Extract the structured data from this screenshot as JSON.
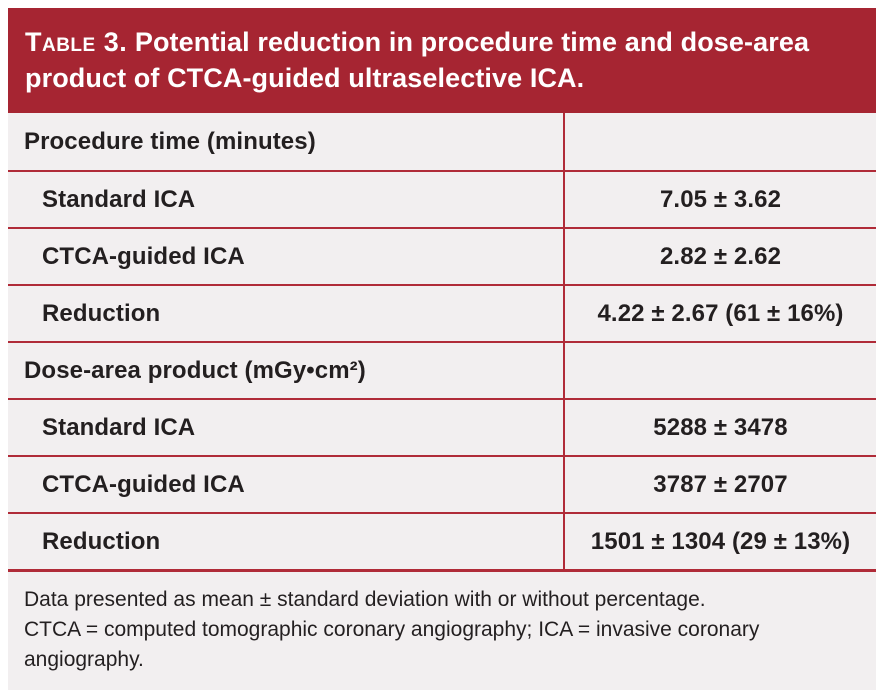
{
  "table": {
    "label": "Table 3.",
    "title": "Potential reduction in procedure time and dose-area product of CTCA-guided ultraselective ICA.",
    "rows": [
      {
        "label": "Procedure time (minutes)",
        "value": "",
        "type": "section"
      },
      {
        "label": "Standard ICA",
        "value": "7.05 ± 3.62",
        "type": "item"
      },
      {
        "label": "CTCA-guided ICA",
        "value": "2.82 ± 2.62",
        "type": "item"
      },
      {
        "label": "Reduction",
        "value": "4.22 ± 2.67 (61 ± 16%)",
        "type": "item"
      },
      {
        "label": "Dose-area product (mGy•cm²)",
        "value": "",
        "type": "section"
      },
      {
        "label": "Standard ICA",
        "value": "5288 ± 3478",
        "type": "item"
      },
      {
        "label": "CTCA-guided ICA",
        "value": "3787 ± 2707",
        "type": "item"
      },
      {
        "label": "Reduction",
        "value": "1501 ± 1304 (29 ± 13%)",
        "type": "item"
      }
    ],
    "footnotes": [
      "Data presented as mean ± standard deviation with or without percentage.",
      "CTCA = computed tomographic coronary angiography; ICA = invasive coronary angiography."
    ]
  },
  "colors": {
    "header_bg": "#a62532",
    "header_text": "#ffffff",
    "row_bg": "#f2eff0",
    "line": "#b02b38",
    "text": "#231f20"
  }
}
